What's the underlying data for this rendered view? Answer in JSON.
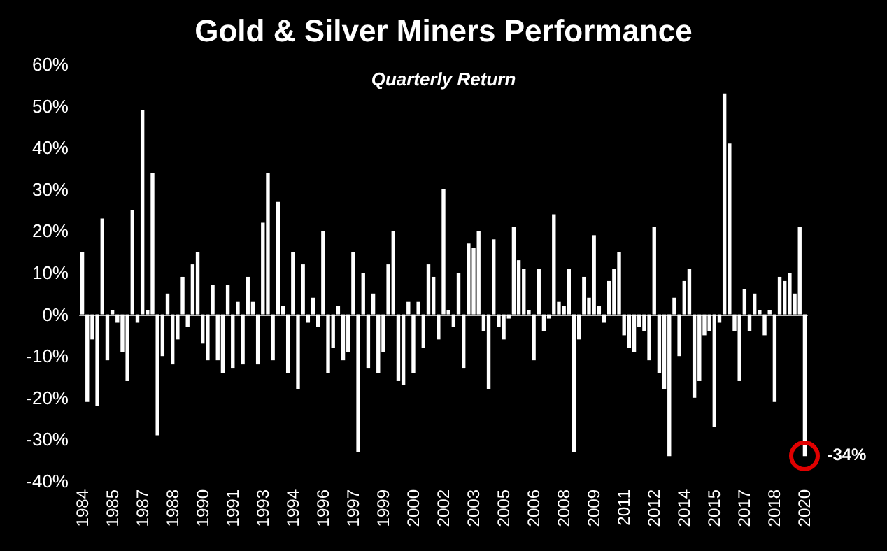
{
  "chart_data": {
    "type": "bar",
    "title": "Gold & Silver Miners Performance",
    "subtitle": "Quarterly Return",
    "categories": [
      "1984",
      null,
      null,
      null,
      null,
      null,
      "1985",
      null,
      null,
      null,
      null,
      null,
      "1987",
      null,
      null,
      null,
      null,
      null,
      "1988",
      null,
      null,
      null,
      null,
      null,
      "1990",
      null,
      null,
      null,
      null,
      null,
      "1991",
      null,
      null,
      null,
      null,
      null,
      "1993",
      null,
      null,
      null,
      null,
      null,
      "1994",
      null,
      null,
      null,
      null,
      null,
      "1996",
      null,
      null,
      null,
      null,
      null,
      "1997",
      null,
      null,
      null,
      null,
      null,
      "1999",
      null,
      null,
      null,
      null,
      null,
      "2000",
      null,
      null,
      null,
      null,
      null,
      "2002",
      null,
      null,
      null,
      null,
      null,
      "2003",
      null,
      null,
      null,
      null,
      null,
      "2005",
      null,
      null,
      null,
      null,
      null,
      "2006",
      null,
      null,
      null,
      null,
      null,
      "2008",
      null,
      null,
      null,
      null,
      null,
      "2009",
      null,
      null,
      null,
      null,
      null,
      "2011",
      null,
      null,
      null,
      null,
      null,
      "2012",
      null,
      null,
      null,
      null,
      null,
      "2014",
      null,
      null,
      null,
      null,
      null,
      "2015",
      null,
      null,
      null,
      null,
      null,
      "2017",
      null,
      null,
      null,
      null,
      null,
      "2018",
      null,
      null,
      null,
      null,
      null,
      "2020"
    ],
    "values": [
      15,
      -21,
      -6,
      -22,
      23,
      -11,
      1,
      -2,
      -9,
      -16,
      25,
      -2,
      49,
      1,
      34,
      -29,
      -10,
      5,
      -12,
      -6,
      9,
      -3,
      12,
      15,
      -7,
      -11,
      7,
      -11,
      -14,
      7,
      -13,
      3,
      -12,
      9,
      3,
      -12,
      22,
      34,
      -11,
      27,
      2,
      -14,
      15,
      -18,
      12,
      -2,
      4,
      -3,
      20,
      -14,
      -8,
      2,
      -11,
      -9,
      15,
      -33,
      10,
      -13,
      5,
      -14,
      -9,
      12,
      20,
      -16,
      -17,
      3,
      -14,
      3,
      -8,
      12,
      9,
      -6,
      30,
      1,
      -3,
      10,
      -13,
      17,
      16,
      20,
      -4,
      -18,
      18,
      -3,
      -6,
      -1,
      21,
      13,
      11,
      1,
      -11,
      11,
      -4,
      -1,
      24,
      3,
      2,
      11,
      -33,
      -6,
      9,
      4,
      19,
      2,
      -2,
      8,
      11,
      15,
      -5,
      -8,
      -9,
      -3,
      -4,
      -11,
      21,
      -14,
      -18,
      -34,
      4,
      -10,
      8,
      11,
      -20,
      -16,
      -5,
      -4,
      -27,
      -2,
      53,
      41,
      -4,
      -16,
      6,
      -4,
      5,
      1,
      -5,
      1,
      -21,
      9,
      8,
      10,
      5,
      21,
      -34
    ],
    "color": "#ffffff",
    "ylim": [
      -40,
      60
    ],
    "yticks": [
      {
        "value": -40,
        "label": "-40%"
      },
      {
        "value": -30,
        "label": "-30%"
      },
      {
        "value": -20,
        "label": "-20%"
      },
      {
        "value": -10,
        "label": "-10%"
      },
      {
        "value": 0,
        "label": "0%"
      },
      {
        "value": 10,
        "label": "10%"
      },
      {
        "value": 20,
        "label": "20%"
      },
      {
        "value": 30,
        "label": "30%"
      },
      {
        "value": 40,
        "label": "40%"
      },
      {
        "value": 50,
        "label": "50%"
      },
      {
        "value": 60,
        "label": "60%"
      }
    ],
    "annotations": [
      {
        "text": "-34%",
        "x": "2020",
        "y": -34
      }
    ]
  }
}
